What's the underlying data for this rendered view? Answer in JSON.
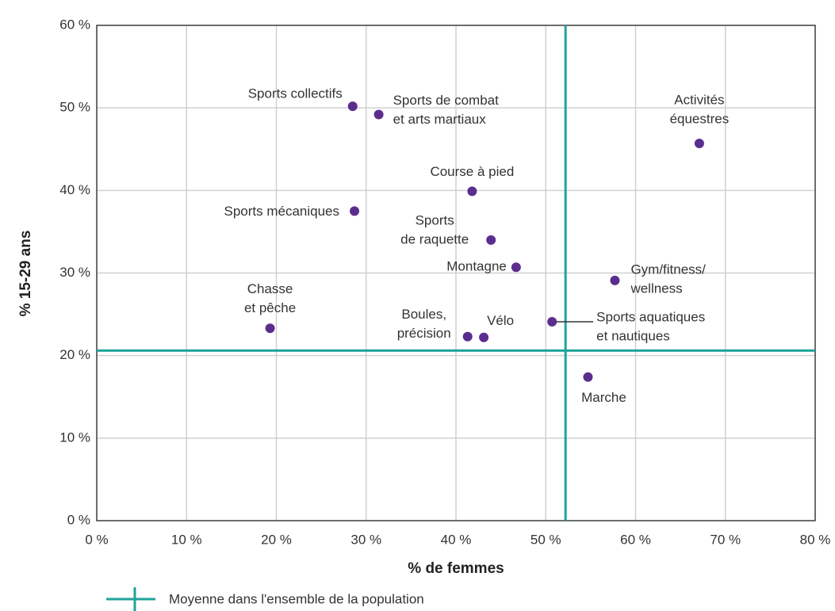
{
  "chart_data": {
    "type": "scatter",
    "xlabel": "% de femmes",
    "ylabel": "% 15-29 ans",
    "xlim": [
      0,
      80
    ],
    "ylim": [
      0,
      60
    ],
    "xticks": [
      {
        "value": 0,
        "label": "0 %"
      },
      {
        "value": 10,
        "label": "10 %"
      },
      {
        "value": 20,
        "label": "20 %"
      },
      {
        "value": 30,
        "label": "30 %"
      },
      {
        "value": 40,
        "label": "40 %"
      },
      {
        "value": 50,
        "label": "50 %"
      },
      {
        "value": 60,
        "label": "60 %"
      },
      {
        "value": 70,
        "label": "70 %"
      },
      {
        "value": 80,
        "label": "80 %"
      }
    ],
    "yticks": [
      {
        "value": 0,
        "label": "0 %"
      },
      {
        "value": 10,
        "label": "10 %"
      },
      {
        "value": 20,
        "label": "20 %"
      },
      {
        "value": 30,
        "label": "30 %"
      },
      {
        "value": 40,
        "label": "40 %"
      },
      {
        "value": 50,
        "label": "50 %"
      },
      {
        "value": 60,
        "label": "60 %"
      }
    ],
    "grid": true,
    "color": "#5b2d8e",
    "point_labels": [
      [
        "Sports collectifs"
      ],
      [
        "Sports de combat",
        "et arts martiaux"
      ],
      [
        "Activités",
        "équestres"
      ],
      [
        "Course à pied"
      ],
      [
        "Sports mécaniques"
      ],
      [
        "Sports",
        "de raquette"
      ],
      [
        "Montagne"
      ],
      [
        "Gym/fitness/",
        "wellness"
      ],
      [
        "Chasse",
        "et pêche"
      ],
      [
        "Boules,",
        "précision"
      ],
      [
        "Vélo"
      ],
      [
        "Sports aquatiques",
        "et nautiques"
      ],
      [
        "Marche"
      ]
    ],
    "x": [
      28.5,
      31.4,
      67.1,
      41.8,
      28.7,
      43.9,
      46.7,
      57.7,
      19.3,
      41.3,
      43.1,
      50.7,
      54.7
    ],
    "values": [
      50.2,
      49.2,
      45.7,
      39.9,
      37.5,
      34.0,
      30.7,
      29.1,
      23.3,
      22.3,
      22.2,
      24.1,
      17.4
    ],
    "reference": {
      "name": "Moyenne dans l'ensemble de la population",
      "x": 52.2,
      "y": 20.6,
      "color": "#1fa39a"
    }
  }
}
